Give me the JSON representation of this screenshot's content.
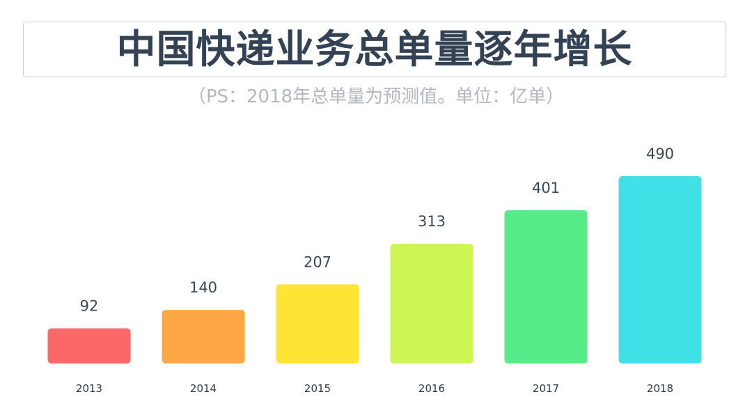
{
  "header": {
    "title": "中国快递业务总单量逐年增长",
    "subtitle": "（PS：2018年总单量为预测值。单位：亿单）"
  },
  "chart_data": {
    "type": "bar",
    "title": "中国快递业务总单量逐年增长",
    "subtitle": "（PS：2018年总单量为预测值。单位：亿单）",
    "categories": [
      "2013",
      "2014",
      "2015",
      "2016",
      "2017",
      "2018"
    ],
    "values": [
      92,
      140,
      207,
      313,
      401,
      490
    ],
    "colors": [
      "#fc6767",
      "#fea746",
      "#fee534",
      "#cdf554",
      "#57ec8a",
      "#41dfe6"
    ],
    "xlabel": "",
    "ylabel": "",
    "ylim": [
      0,
      490
    ],
    "grid": false,
    "legend": "none"
  }
}
